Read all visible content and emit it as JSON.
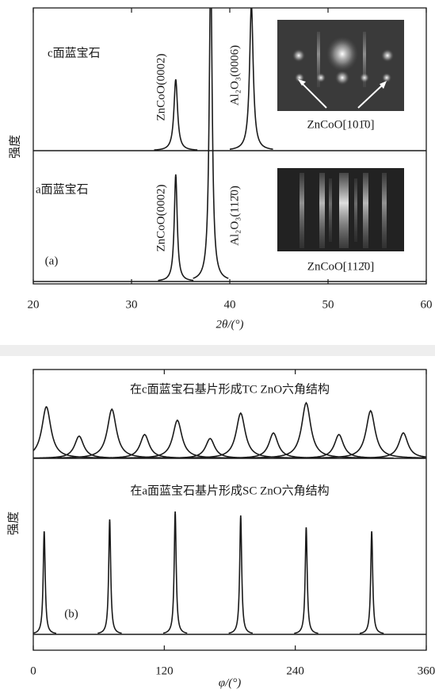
{
  "chart_data": [
    {
      "type": "line",
      "title": "(a)",
      "xlabel": "2θ/(°)",
      "ylabel": "强度",
      "xlim": [
        20,
        60
      ],
      "xticks": [
        20,
        30,
        40,
        50,
        60
      ],
      "ylim": [
        0,
        348
      ],
      "series": [
        {
          "name": "c面蓝宝石",
          "color": "#1a1a1a",
          "x": [
            34.5,
            42.2
          ],
          "values": [
            90,
            185
          ]
        },
        {
          "name": "a面蓝宝石",
          "color": "#1a1a1a",
          "x": [
            34.5,
            38.06
          ],
          "values": [
            135,
            400
          ]
        }
      ],
      "annotations": [
        "ZnCoO(0002)",
        "Al₂O₃(0006)",
        "ZnCoO(0002)",
        "Al₂O₃(112̄0)",
        "ZnCoO[101̄0]",
        "ZnCoO[112̄0]"
      ]
    },
    {
      "type": "line",
      "title": "(b)",
      "xlabel": "φ/(°)",
      "ylabel": "强度",
      "xlim": [
        0,
        360
      ],
      "xticks": [
        0,
        120,
        240,
        360
      ],
      "ylim": [
        0,
        354
      ],
      "series": [
        {
          "name": "在c面蓝宝石基片形成TC ZnO六角结构",
          "color": "#1a1a1a",
          "x": [
            12,
            42,
            72,
            102,
            132,
            162,
            190,
            220,
            250,
            280,
            309,
            339
          ],
          "values": [
            65,
            28,
            62,
            30,
            48,
            25,
            57,
            32,
            70,
            30,
            60,
            32
          ]
        },
        {
          "name": "在a面蓝宝石基片形成SC ZnO六角结构",
          "color": "#1a1a1a",
          "x": [
            10,
            70,
            130,
            190,
            250,
            310
          ],
          "values": [
            130,
            145,
            155,
            150,
            135,
            130
          ]
        }
      ]
    }
  ]
}
